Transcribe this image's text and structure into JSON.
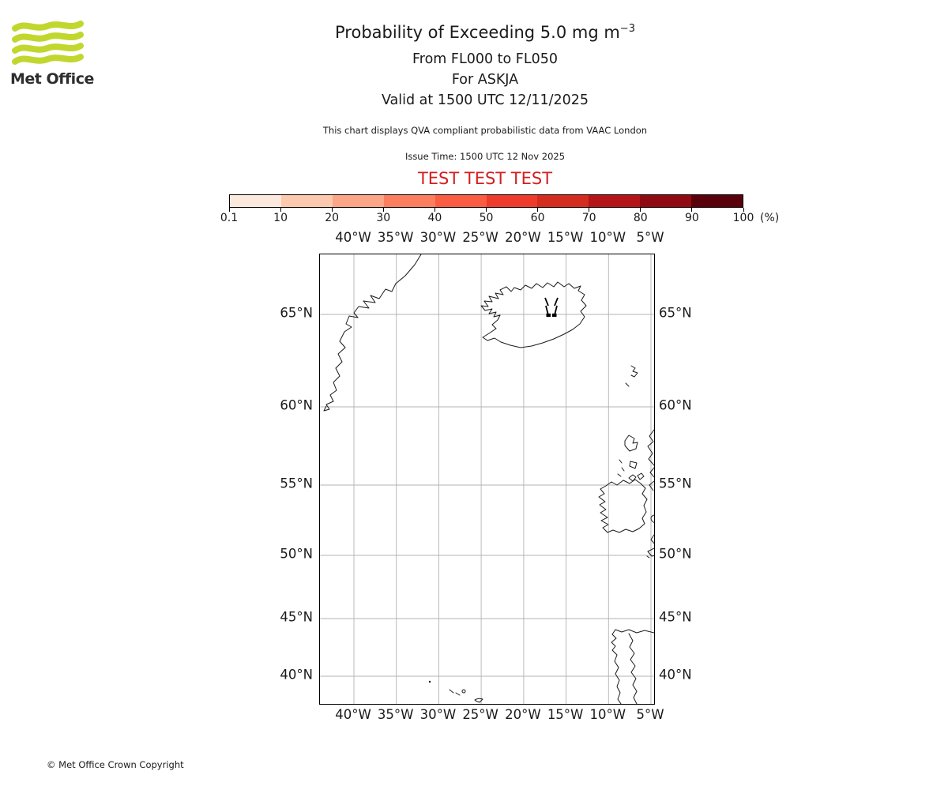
{
  "logo": {
    "text": "Met Office",
    "green": "#c1d72e"
  },
  "header": {
    "title_main": "Probability of Exceeding 5.0 mg m",
    "title_sup": "−3",
    "subtitle_flight_levels": "From FL000 to FL050",
    "subtitle_volcano": "For ASKJA",
    "subtitle_valid": "Valid at 1500 UTC 12/11/2025",
    "qva_note": "This chart displays QVA compliant probabilistic data from VAAC London",
    "issue_time": "Issue Time: 1500 UTC 12 Nov 2025",
    "test_banner": "TEST TEST TEST",
    "test_color": "#d21f1f"
  },
  "colorbar": {
    "tick_labels": [
      "0.1",
      "10",
      "20",
      "30",
      "40",
      "50",
      "60",
      "70",
      "80",
      "90",
      "100"
    ],
    "unit": "(%)",
    "segments": [
      "#fce9dd",
      "#fcc8ae",
      "#fca687",
      "#fb7f5f",
      "#fb5d43",
      "#ee3b2b",
      "#d52c20",
      "#b51419",
      "#900a12",
      "#5a000b"
    ]
  },
  "map": {
    "lon_labels": [
      "40°W",
      "35°W",
      "30°W",
      "25°W",
      "20°W",
      "15°W",
      "10°W",
      "5°W"
    ],
    "lat_labels": [
      "65°N",
      "60°N",
      "55°N",
      "50°N",
      "45°N",
      "40°N"
    ]
  },
  "footer": {
    "copyright": "© Met Office Crown Copyright"
  },
  "chart_data": {
    "type": "map",
    "title": "Probability of Exceeding 5.0 mg m-3",
    "layer": "FL000 to FL050",
    "volcano": {
      "name": "ASKJA",
      "marker_lon_deg_w": 16.7,
      "marker_lat_deg_n": 65.1
    },
    "valid_time": "1500 UTC 12/11/2025",
    "issue_time": "1500 UTC 12 Nov 2025",
    "projection": "Mercator",
    "extent": {
      "lon_west_deg_w": 44.0,
      "lon_east_deg_w": 4.3,
      "lat_south_deg_n": 37.5,
      "lat_north_deg_n": 67.8
    },
    "lon_gridlines_deg_w": [
      40,
      35,
      30,
      25,
      20,
      15,
      10,
      5
    ],
    "lat_gridlines_deg_n": [
      65,
      60,
      55,
      50,
      45,
      40
    ],
    "colorbar_boundaries_percent": [
      0.1,
      10,
      20,
      30,
      40,
      50,
      60,
      70,
      80,
      90,
      100
    ],
    "colorbar_unit": "%",
    "probability_regions": [],
    "note": "Test chart: no shaded probability areas exceed the 0.1% threshold; only coastlines, gridlines and the volcano marker are drawn"
  }
}
